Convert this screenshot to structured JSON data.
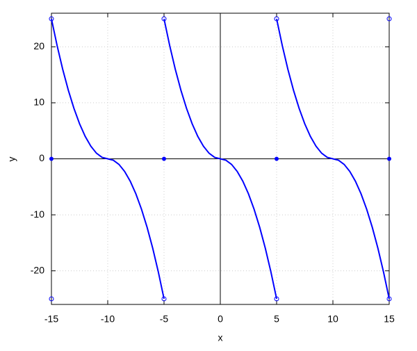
{
  "chart_data": {
    "type": "line",
    "x_label": "x",
    "y_label": "y",
    "xlim": [
      -15,
      15
    ],
    "ylim": [
      -26,
      26
    ],
    "xticks": [
      -15,
      -10,
      -5,
      0,
      5,
      10,
      15
    ],
    "yticks": [
      -20,
      -10,
      0,
      10,
      20
    ],
    "grid": true,
    "series": [
      {
        "color": "#0000ff",
        "x": [
          -15,
          -14.5,
          -14,
          -13.5,
          -13,
          -12.5,
          -12,
          -11.5,
          -11,
          -10.5,
          -10,
          -9.5,
          -9,
          -8.5,
          -8,
          -7.5,
          -7,
          -6.5,
          -6,
          -5.5,
          -5
        ],
        "values": [
          25,
          20.25,
          16,
          12.25,
          9,
          6.25,
          4,
          2.25,
          1,
          0.25,
          0,
          -0.25,
          -1,
          -2.25,
          -4,
          -6.25,
          -9,
          -12.25,
          -16,
          -20.25,
          -25
        ]
      },
      {
        "color": "#0000ff",
        "x": [
          -5,
          -4.5,
          -4,
          -3.5,
          -3,
          -2.5,
          -2,
          -1.5,
          -1,
          -0.5,
          0,
          0.5,
          1,
          1.5,
          2,
          2.5,
          3,
          3.5,
          4,
          4.5,
          5
        ],
        "values": [
          25,
          20.25,
          16,
          12.25,
          9,
          6.25,
          4,
          2.25,
          1,
          0.25,
          0,
          -0.25,
          -1,
          -2.25,
          -4,
          -6.25,
          -9,
          -12.25,
          -16,
          -20.25,
          -25
        ]
      },
      {
        "color": "#0000ff",
        "x": [
          5,
          5.5,
          6,
          6.5,
          7,
          7.5,
          8,
          8.5,
          9,
          9.5,
          10,
          10.5,
          11,
          11.5,
          12,
          12.5,
          13,
          13.5,
          14,
          14.5,
          15
        ],
        "values": [
          25,
          20.25,
          16,
          12.25,
          9,
          6.25,
          4,
          2.25,
          1,
          0.25,
          0,
          -0.25,
          -1,
          -2.25,
          -4,
          -6.25,
          -9,
          -12.25,
          -16,
          -20.25,
          -25
        ]
      }
    ],
    "open_points": {
      "color": "#0000ff",
      "x": [
        -15,
        -15,
        -5,
        -5,
        5,
        5,
        15,
        15
      ],
      "values": [
        25,
        -25,
        25,
        -25,
        25,
        -25,
        25,
        -25
      ]
    },
    "filled_points": {
      "color": "#0000ff",
      "x": [
        -15,
        -5,
        5,
        15
      ],
      "values": [
        0,
        0,
        0,
        0
      ]
    }
  }
}
